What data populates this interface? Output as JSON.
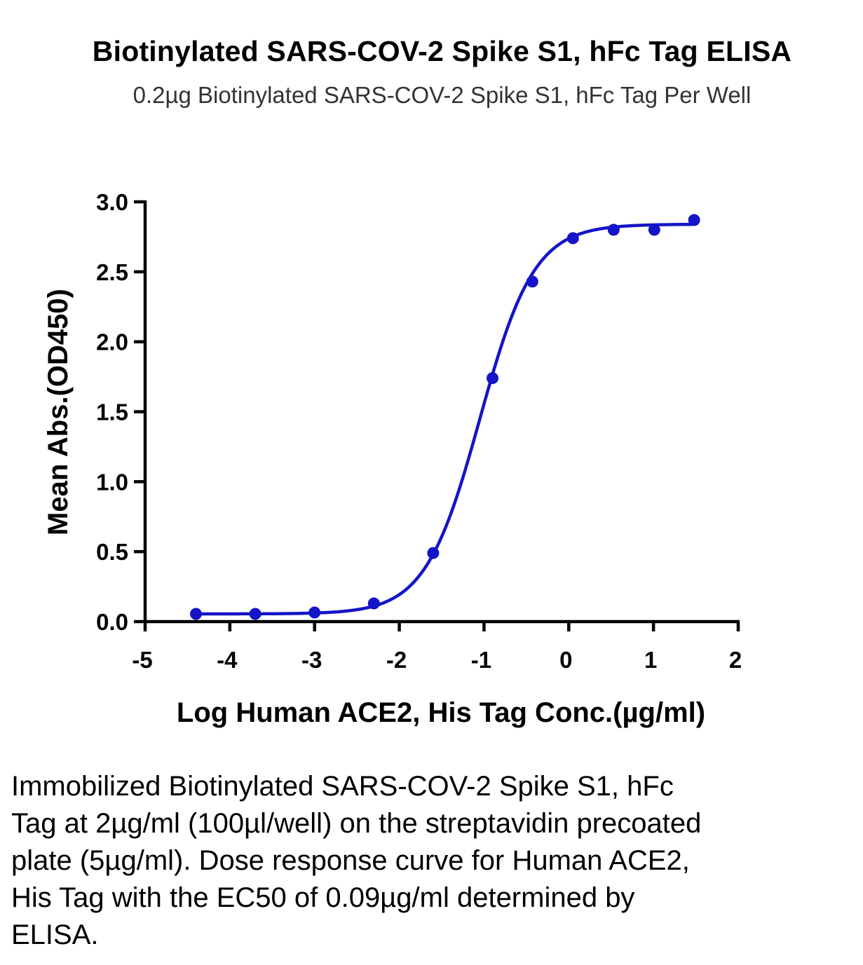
{
  "chart_data": {
    "type": "scatter",
    "title": "Biotinylated SARS-COV-2 Spike S1, hFc Tag ELISA",
    "subtitle": "0.2µg Biotinylated SARS-COV-2 Spike S1, hFc Tag Per Well",
    "xlabel": "Log Human ACE2, His Tag Conc.(µg/ml)",
    "ylabel": "Mean Abs.(OD450)",
    "xlim": [
      -5,
      2
    ],
    "ylim": [
      0.0,
      3.0
    ],
    "x_ticks": [
      "-5",
      "-4",
      "-3",
      "-2",
      "-1",
      "0",
      "1",
      "2"
    ],
    "y_ticks": [
      "0.0",
      "0.5",
      "1.0",
      "1.5",
      "2.0",
      "2.5",
      "3.0"
    ],
    "series": [
      {
        "color": "#1414c8",
        "points": {
          "x": [
            -4.4,
            -3.7,
            -3.0,
            -2.3,
            -1.6,
            -0.9,
            -0.43,
            0.05,
            0.53,
            1.01,
            1.48
          ],
          "y": [
            0.055,
            0.055,
            0.065,
            0.13,
            0.49,
            1.74,
            2.43,
            2.74,
            2.8,
            2.8,
            2.87
          ]
        },
        "fit": {
          "model": "4PL",
          "bottom": 0.055,
          "top": 2.84,
          "log_ec50": -1.05,
          "hill_slope": 1.35
        }
      }
    ],
    "grid": false,
    "legend": "none"
  },
  "caption": "Immobilized Biotinylated SARS-COV-2 Spike S1, hFc Tag at 2µg/ml (100µl/well) on the streptavidin precoated plate (5µg/ml). Dose response curve for Human ACE2, His Tag with the EC50 of 0.09µg/ml determined by ELISA."
}
